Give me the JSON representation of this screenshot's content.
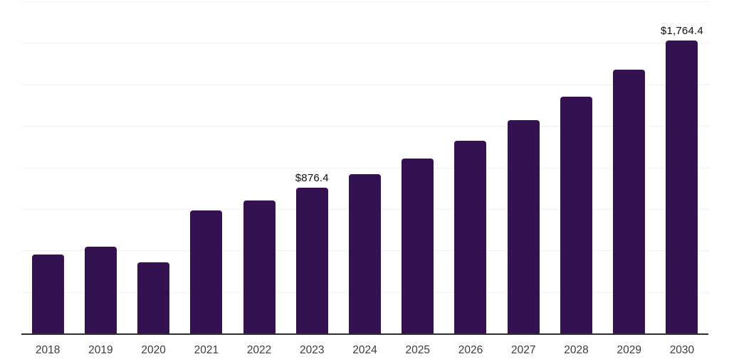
{
  "chart_data": {
    "type": "bar",
    "title": "",
    "xlabel": "",
    "ylabel": "",
    "categories": [
      "2018",
      "2019",
      "2020",
      "2021",
      "2022",
      "2023",
      "2024",
      "2025",
      "2026",
      "2027",
      "2028",
      "2029",
      "2030"
    ],
    "values": [
      476,
      523,
      429,
      742,
      802,
      876.4,
      961,
      1055,
      1162,
      1286,
      1428,
      1587,
      1764.4
    ],
    "data_labels": [
      "",
      "",
      "",
      "",
      "",
      "$876.4",
      "",
      "",
      "",
      "",
      "",
      "",
      "$1,764.4"
    ],
    "ylim": [
      0,
      2000
    ],
    "gridline_interval": 250,
    "grid": "horizontal",
    "legend_position": "none",
    "y_tick_labels_visible": false,
    "bar_color": "#341150",
    "gridline_color": "#f1f1f3",
    "axis_line_color": "#2e2e2e",
    "label_color": "#0e0e0e",
    "tick_label_color": "#3c3c3c"
  }
}
